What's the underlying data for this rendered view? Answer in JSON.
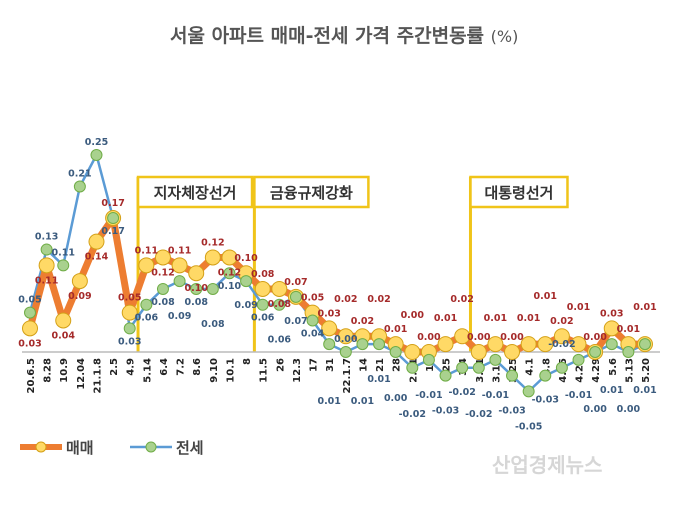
{
  "chart_data": {
    "type": "line",
    "title": "서울 아파트 매매-전세 가격 주간변동률",
    "title_unit": "(%)",
    "categories": [
      "20.6.5",
      "8.28",
      "10.9",
      "12.04",
      "21.1.8",
      "2.5",
      "4.9",
      "5.14",
      "6.4",
      "7.2",
      "8.6",
      "9.10",
      "10.1",
      "8",
      "11.5",
      "26",
      "12.3",
      "17",
      "31",
      "22.1.7",
      "14",
      "21",
      "28",
      "2.11",
      "18",
      "25",
      "3.4",
      "3.11",
      "3.18",
      "3.25",
      "4.1",
      "4.8",
      "4.15",
      "4.22",
      "4.29",
      "5.6",
      "5.13",
      "5.20"
    ],
    "series": [
      {
        "name": "매매",
        "color": "#ed7d31",
        "marker_color": "#ffd966",
        "values": [
          0.03,
          0.11,
          0.04,
          0.09,
          0.14,
          0.17,
          0.05,
          0.11,
          0.12,
          0.11,
          0.1,
          0.12,
          0.12,
          0.1,
          0.08,
          0.08,
          0.07,
          0.05,
          0.03,
          0.02,
          0.02,
          0.02,
          0.01,
          0.0,
          0.0,
          0.01,
          0.02,
          0.0,
          0.01,
          0.0,
          0.01,
          0.01,
          0.02,
          0.01,
          0.0,
          0.03,
          0.01,
          0.01
        ]
      },
      {
        "name": "전세",
        "color": "#5b9bd5",
        "marker_color": "#a9d18e",
        "values": [
          0.05,
          0.13,
          0.11,
          0.21,
          0.25,
          0.17,
          0.03,
          0.06,
          0.08,
          0.09,
          0.08,
          0.08,
          0.1,
          0.09,
          0.06,
          0.06,
          0.07,
          0.04,
          0.01,
          0.0,
          0.01,
          0.01,
          0.0,
          -0.02,
          -0.01,
          -0.03,
          -0.02,
          -0.02,
          -0.01,
          -0.03,
          -0.05,
          -0.03,
          -0.02,
          -0.01,
          0.0,
          0.01,
          0.0,
          0.01
        ]
      }
    ],
    "annotations": [
      {
        "label": "지자체장선거",
        "after_category": "4.9"
      },
      {
        "label": "금융규제강화",
        "after_category": "8"
      },
      {
        "label": "대통령선거",
        "after_category": "3.4"
      }
    ],
    "grid": false,
    "legend": "bottom-left"
  },
  "watermark": "산업경제뉴스"
}
